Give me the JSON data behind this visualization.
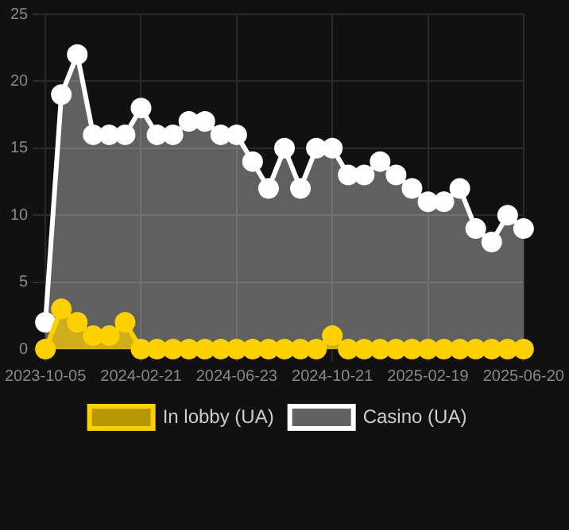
{
  "chart_data": {
    "type": "area",
    "categories": [
      "2023-10-05",
      null,
      null,
      null,
      null,
      null,
      "2024-02-21",
      null,
      null,
      null,
      null,
      null,
      "2024-06-23",
      null,
      null,
      null,
      null,
      null,
      "2024-10-21",
      null,
      null,
      null,
      null,
      null,
      "2025-02-19",
      null,
      null,
      null,
      null,
      null,
      "2025-06-20"
    ],
    "series": [
      {
        "name": "In lobby (UA)",
        "color": "#ffd000",
        "values": [
          0,
          3,
          2,
          1,
          1,
          2,
          0,
          0,
          0,
          0,
          0,
          0,
          0,
          0,
          0,
          0,
          0,
          0,
          1,
          0,
          0,
          0,
          0,
          0,
          0,
          0,
          0,
          0,
          0,
          0,
          0
        ]
      },
      {
        "name": "Casino (UA)",
        "color": "#ffffff",
        "values": [
          2,
          19,
          22,
          16,
          16,
          16,
          18,
          16,
          16,
          17,
          17,
          16,
          16,
          14,
          12,
          15,
          12,
          15,
          15,
          13,
          13,
          14,
          13,
          12,
          11,
          11,
          12,
          9,
          8,
          10,
          9
        ]
      }
    ],
    "ylim": [
      0,
      25
    ],
    "yticks": [
      0,
      5,
      10,
      15,
      20,
      25
    ],
    "grid": true,
    "legend": "bottom",
    "marker": "circle"
  }
}
